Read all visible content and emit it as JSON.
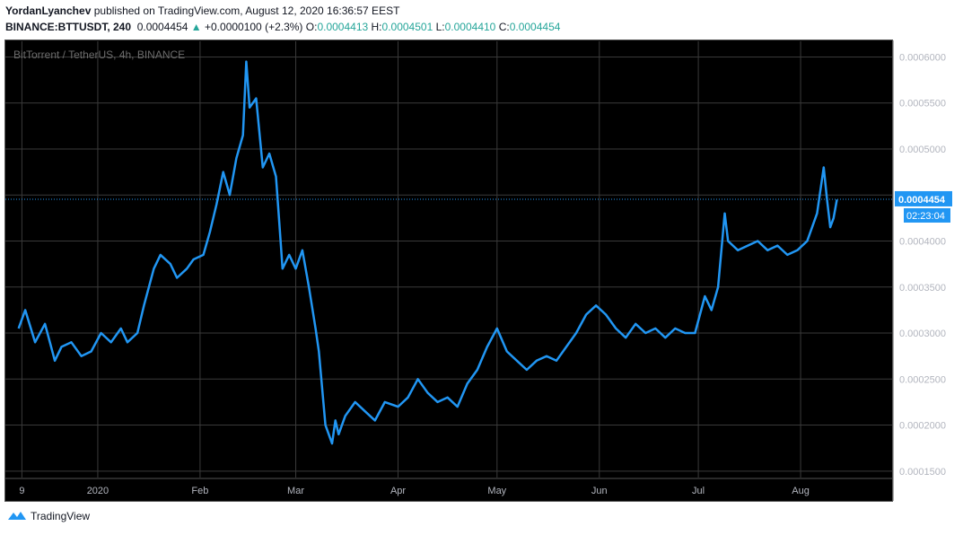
{
  "header": {
    "author": "YordanLyanchev",
    "published_text": "published on TradingView.com, August 12, 2020 16:36:57 EEST",
    "symbol": "BINANCE:BTTUSDT, 240",
    "last_price": "0.0004454",
    "change": "+0.0000100 (+2.3%)",
    "open_label": "O:",
    "open": "0.0004413",
    "high_label": "H:",
    "high": "0.0004501",
    "low_label": "L:",
    "low": "0.0004410",
    "close_label": "C:",
    "close": "0.0004454"
  },
  "chart_label": "BitTorrent / TetherUS, 4h, BINANCE",
  "footer": {
    "brand": "TradingView"
  },
  "colors": {
    "line": "#2196f3",
    "background": "#000000",
    "grid": "#3a3a3a",
    "price_tag": "#2196f3",
    "up": "#26a69a"
  },
  "chart_data": {
    "type": "line",
    "title": "BitTorrent / TetherUS, 4h, BINANCE",
    "ylim": [
      0.000143,
      0.000618
    ],
    "y_ticks": [
      "0.0006000",
      "0.0005500",
      "0.0005000",
      "0.0004500",
      "0.0004000",
      "0.0003500",
      "0.0003000",
      "0.0002500",
      "0.0002000",
      "0.0001500"
    ],
    "y_tick_values": [
      0.0006,
      0.00055,
      0.0005,
      0.00045,
      0.0004,
      0.00035,
      0.0003,
      0.00025,
      0.0002,
      0.00015
    ],
    "x_ticks": [
      "9",
      "2020",
      "Feb",
      "Mar",
      "Apr",
      "May",
      "Jun",
      "Jul",
      "Aug"
    ],
    "x_tick_dates": [
      "2019-12-09",
      "2020-01-01",
      "2020-02-01",
      "2020-03-01",
      "2020-04-01",
      "2020-05-01",
      "2020-06-01",
      "2020-07-01",
      "2020-08-01"
    ],
    "current_price": "0.0004454",
    "current_value": 0.0004454,
    "countdown": "02:23:04",
    "grid": true,
    "series": [
      {
        "x": [
          "2019-12-08",
          "2019-12-10",
          "2019-12-13",
          "2019-12-16",
          "2019-12-19",
          "2019-12-21",
          "2019-12-24",
          "2019-12-27",
          "2019-12-30",
          "2020-01-02",
          "2020-01-05",
          "2020-01-08",
          "2020-01-10",
          "2020-01-13",
          "2020-01-15",
          "2020-01-18",
          "2020-01-20",
          "2020-01-23",
          "2020-01-25",
          "2020-01-28",
          "2020-01-30",
          "2020-02-02",
          "2020-02-04",
          "2020-02-06",
          "2020-02-08",
          "2020-02-10",
          "2020-02-12",
          "2020-02-14",
          "2020-02-15",
          "2020-02-16",
          "2020-02-18",
          "2020-02-20",
          "2020-02-22",
          "2020-02-24",
          "2020-02-25",
          "2020-02-26",
          "2020-02-28",
          "2020-03-01",
          "2020-03-03",
          "2020-03-05",
          "2020-03-07",
          "2020-03-08",
          "2020-03-10",
          "2020-03-12",
          "2020-03-13",
          "2020-03-14",
          "2020-03-16",
          "2020-03-19",
          "2020-03-22",
          "2020-03-25",
          "2020-03-28",
          "2020-04-01",
          "2020-04-04",
          "2020-04-07",
          "2020-04-10",
          "2020-04-13",
          "2020-04-16",
          "2020-04-19",
          "2020-04-22",
          "2020-04-25",
          "2020-04-28",
          "2020-05-01",
          "2020-05-04",
          "2020-05-07",
          "2020-05-10",
          "2020-05-13",
          "2020-05-16",
          "2020-05-19",
          "2020-05-22",
          "2020-05-25",
          "2020-05-28",
          "2020-05-31",
          "2020-06-03",
          "2020-06-06",
          "2020-06-09",
          "2020-06-12",
          "2020-06-15",
          "2020-06-18",
          "2020-06-21",
          "2020-06-24",
          "2020-06-27",
          "2020-06-30",
          "2020-07-03",
          "2020-07-05",
          "2020-07-07",
          "2020-07-09",
          "2020-07-10",
          "2020-07-13",
          "2020-07-16",
          "2020-07-19",
          "2020-07-22",
          "2020-07-25",
          "2020-07-28",
          "2020-07-31",
          "2020-08-03",
          "2020-08-06",
          "2020-08-08",
          "2020-08-09",
          "2020-08-10",
          "2020-08-11",
          "2020-08-12"
        ],
        "values": [
          0.000305,
          0.000325,
          0.00029,
          0.00031,
          0.00027,
          0.000285,
          0.00029,
          0.000275,
          0.00028,
          0.0003,
          0.00029,
          0.000305,
          0.00029,
          0.0003,
          0.00033,
          0.00037,
          0.000385,
          0.000375,
          0.00036,
          0.00037,
          0.00038,
          0.000385,
          0.00041,
          0.00044,
          0.000475,
          0.00045,
          0.00049,
          0.000515,
          0.000595,
          0.000545,
          0.000555,
          0.00048,
          0.000495,
          0.00047,
          0.00042,
          0.00037,
          0.000385,
          0.00037,
          0.00039,
          0.00035,
          0.000305,
          0.00028,
          0.0002,
          0.00018,
          0.000205,
          0.00019,
          0.00021,
          0.000225,
          0.000215,
          0.000205,
          0.000225,
          0.00022,
          0.00023,
          0.00025,
          0.000235,
          0.000225,
          0.00023,
          0.00022,
          0.000245,
          0.00026,
          0.000285,
          0.000305,
          0.00028,
          0.00027,
          0.00026,
          0.00027,
          0.000275,
          0.00027,
          0.000285,
          0.0003,
          0.00032,
          0.00033,
          0.00032,
          0.000305,
          0.000295,
          0.00031,
          0.0003,
          0.000305,
          0.000295,
          0.000305,
          0.0003,
          0.0003,
          0.00034,
          0.000325,
          0.00035,
          0.00043,
          0.0004,
          0.00039,
          0.000395,
          0.0004,
          0.00039,
          0.000395,
          0.000385,
          0.00039,
          0.0004,
          0.00043,
          0.00048,
          0.000445,
          0.000415,
          0.000425,
          0.000445
        ]
      }
    ]
  }
}
